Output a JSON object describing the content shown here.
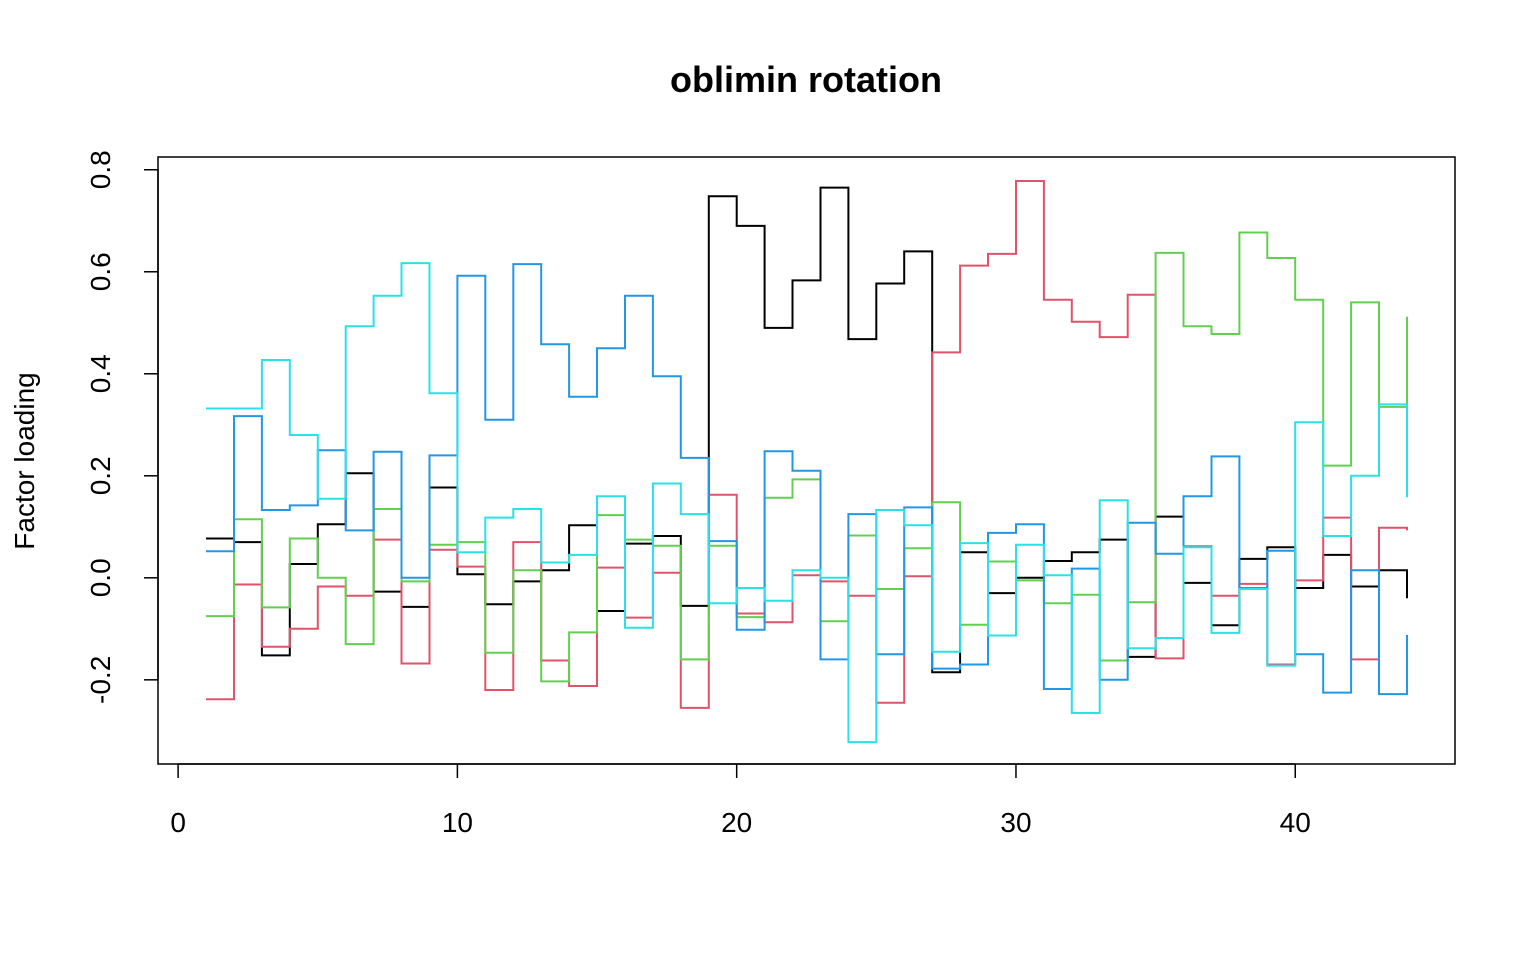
{
  "chart_data": {
    "type": "line",
    "style": "step",
    "title": "oblimin rotation",
    "xlabel": "",
    "ylabel": "Factor loading",
    "xlim": [
      -0.72,
      45.72
    ],
    "ylim": [
      -0.365,
      0.825
    ],
    "xticks": [
      0,
      10,
      20,
      30,
      40
    ],
    "xtick_labels": [
      "0",
      "10",
      "20",
      "30",
      "40"
    ],
    "yticks": [
      -0.2,
      0.0,
      0.2,
      0.4,
      0.6,
      0.8
    ],
    "ytick_labels": [
      "-0.2",
      "0.0",
      "0.2",
      "0.4",
      "0.6",
      "0.8"
    ],
    "grid": false,
    "legend": "none",
    "x": [
      1,
      2,
      3,
      4,
      5,
      6,
      7,
      8,
      9,
      10,
      11,
      12,
      13,
      14,
      15,
      16,
      17,
      18,
      19,
      20,
      21,
      22,
      23,
      24,
      25,
      26,
      27,
      28,
      29,
      30,
      31,
      32,
      33,
      34,
      35,
      36,
      37,
      38,
      39,
      40,
      41,
      42,
      43,
      44
    ],
    "series": [
      {
        "color": "#000000",
        "values": [
          0.077,
          0.07,
          -0.152,
          0.027,
          0.105,
          0.205,
          -0.027,
          -0.057,
          0.177,
          0.007,
          -0.052,
          -0.007,
          0.015,
          0.103,
          -0.065,
          0.067,
          0.082,
          -0.055,
          0.748,
          0.69,
          0.49,
          0.583,
          0.765,
          0.468,
          0.577,
          0.64,
          -0.185,
          0.05,
          -0.03,
          0.0,
          0.033,
          0.05,
          0.075,
          -0.155,
          0.12,
          -0.01,
          -0.093,
          0.037,
          0.06,
          -0.02,
          0.045,
          -0.017,
          0.015,
          -0.04
        ]
      },
      {
        "color": "#DF536B",
        "values": [
          -0.238,
          -0.013,
          -0.135,
          -0.1,
          -0.017,
          -0.035,
          0.075,
          -0.168,
          0.055,
          0.022,
          -0.22,
          0.07,
          -0.162,
          -0.212,
          0.02,
          -0.078,
          0.01,
          -0.255,
          0.163,
          -0.07,
          -0.087,
          0.005,
          -0.007,
          -0.035,
          -0.245,
          0.003,
          0.442,
          0.612,
          0.635,
          0.778,
          0.545,
          0.502,
          0.472,
          0.555,
          -0.158,
          0.062,
          -0.035,
          -0.012,
          -0.17,
          -0.005,
          0.118,
          -0.16,
          0.098,
          0.093
        ]
      },
      {
        "color": "#61D04F",
        "values": [
          -0.075,
          0.115,
          -0.058,
          0.077,
          0.0,
          -0.13,
          0.135,
          -0.007,
          0.065,
          0.07,
          -0.147,
          0.015,
          -0.203,
          -0.107,
          0.123,
          0.075,
          0.063,
          -0.16,
          0.063,
          -0.077,
          0.157,
          0.193,
          -0.085,
          0.083,
          -0.022,
          0.058,
          0.148,
          -0.092,
          0.032,
          -0.005,
          -0.05,
          -0.033,
          -0.162,
          -0.048,
          0.637,
          0.493,
          0.478,
          0.677,
          0.627,
          0.545,
          0.22,
          0.54,
          0.335,
          0.512
        ]
      },
      {
        "color": "#2297E6",
        "values": [
          0.052,
          0.317,
          0.133,
          0.142,
          0.25,
          0.093,
          0.247,
          0.0,
          0.24,
          0.592,
          0.31,
          0.615,
          0.458,
          0.355,
          0.45,
          0.553,
          0.395,
          0.235,
          0.072,
          -0.102,
          0.248,
          0.21,
          -0.16,
          0.125,
          -0.15,
          0.138,
          -0.178,
          -0.17,
          0.088,
          0.105,
          -0.218,
          0.018,
          -0.2,
          0.108,
          0.047,
          0.16,
          0.238,
          -0.02,
          0.053,
          -0.15,
          -0.225,
          0.015,
          -0.228,
          -0.112
        ]
      },
      {
        "color": "#28E2E5",
        "values": [
          0.332,
          0.332,
          0.427,
          0.28,
          0.155,
          0.493,
          0.553,
          0.617,
          0.362,
          0.05,
          0.118,
          0.135,
          0.03,
          0.045,
          0.16,
          -0.098,
          0.185,
          0.125,
          -0.05,
          -0.02,
          -0.045,
          0.015,
          0.0,
          -0.322,
          0.133,
          0.103,
          -0.145,
          0.068,
          -0.113,
          0.065,
          0.005,
          -0.265,
          0.152,
          -0.138,
          -0.118,
          0.06,
          -0.108,
          -0.022,
          -0.172,
          0.305,
          0.082,
          0.2,
          0.34,
          0.158
        ]
      }
    ]
  }
}
